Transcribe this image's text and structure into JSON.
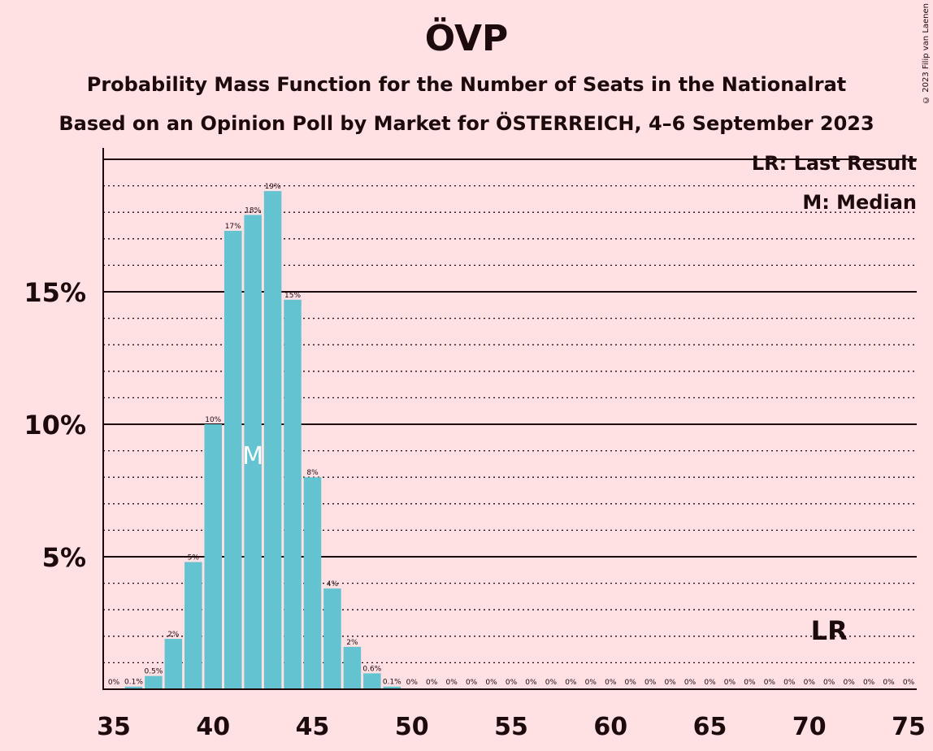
{
  "title": "ÖVP",
  "subtitle_1": "Probability Mass Function for the Number of Seats in the Nationalrat",
  "subtitle_2": "Based on an Opinion Poll by Market for ÖSTERREICH, 4–6 September 2023",
  "copyright": "© 2023 Filip van Laenen",
  "legend": {
    "last_result": "LR: Last Result",
    "median": "M: Median"
  },
  "colors": {
    "background": "#ffe0e3",
    "bar": "#63c3d1",
    "text": "#1d0a0c"
  },
  "chart_data": {
    "type": "bar",
    "x": [
      35,
      36,
      37,
      38,
      39,
      40,
      41,
      42,
      43,
      44,
      45,
      46,
      47,
      48,
      49,
      50,
      51,
      52,
      53,
      54,
      55,
      56,
      57,
      58,
      59,
      60,
      61,
      62,
      63,
      64,
      65,
      66,
      67,
      68,
      69,
      70,
      71,
      72,
      73,
      74,
      75
    ],
    "values": [
      0,
      0.1,
      0.5,
      1.9,
      4.8,
      10.0,
      17.3,
      17.9,
      18.8,
      14.7,
      8.0,
      3.8,
      1.6,
      0.6,
      0.1,
      0,
      0,
      0,
      0,
      0,
      0,
      0,
      0,
      0,
      0,
      0,
      0,
      0,
      0,
      0,
      0,
      0,
      0,
      0,
      0,
      0,
      0,
      0,
      0,
      0,
      0
    ],
    "data_labels": [
      "0%",
      "0.1%",
      "0.5%",
      "2%",
      "5%",
      "10%",
      "17%",
      "18%",
      "19%",
      "15%",
      "8%",
      "4%",
      "2%",
      "0.6%",
      "0.1%",
      "0%",
      "0%",
      "0%",
      "0%",
      "0%",
      "0%",
      "0%",
      "0%",
      "0%",
      "0%",
      "0%",
      "0%",
      "0%",
      "0%",
      "0%",
      "0%",
      "0%",
      "0%",
      "0%",
      "0%",
      "0%",
      "0%",
      "0%",
      "0%",
      "0%",
      "0%"
    ],
    "x_ticks": [
      "35",
      "40",
      "45",
      "50",
      "55",
      "60",
      "65",
      "70",
      "75"
    ],
    "y_ticks": [
      "5%",
      "10%",
      "15%"
    ],
    "y_tick_values": [
      5,
      10,
      15
    ],
    "xlim": [
      35,
      75
    ],
    "ylim": [
      0,
      20.3
    ],
    "median_seat": 42,
    "median_marker": "M",
    "last_result_seat": 71,
    "last_result_marker": "LR",
    "grid": "dotted every 1%, solid every 5%"
  }
}
